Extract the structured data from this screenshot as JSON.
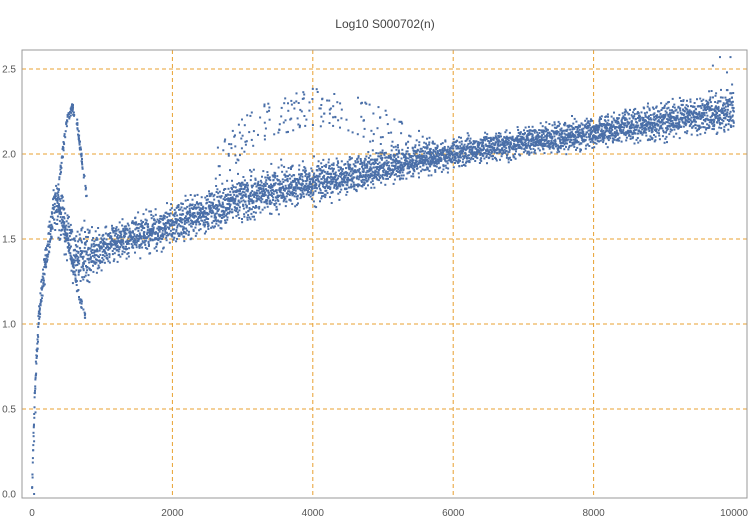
{
  "chart_data": {
    "type": "scatter",
    "title": "Log10 S000702(n)",
    "xlabel": "",
    "ylabel": "",
    "xlim": [
      0,
      10000
    ],
    "ylim": [
      0,
      2.6
    ],
    "x_ticks": [
      0,
      2000,
      4000,
      6000,
      8000,
      10000
    ],
    "y_ticks": [
      0.0,
      0.5,
      1.0,
      1.5,
      2.0,
      2.5
    ],
    "x_tick_labels": [
      "0",
      "2000",
      "4000",
      "6000",
      "8000",
      "10000"
    ],
    "y_tick_labels": [
      "0.0",
      "0.5",
      "1.0",
      "1.5",
      "2.0",
      "2.5"
    ],
    "grid": true,
    "grid_style": "dashed",
    "legend": "none",
    "colors": {
      "points": "#4a6fa8",
      "grid": "#e8a030",
      "frame": "#999999",
      "title": "#444444"
    },
    "series": [
      {
        "trend": [
          [
            0,
            0.0
          ],
          [
            40,
            0.6
          ],
          [
            100,
            1.05
          ],
          [
            200,
            1.4
          ],
          [
            300,
            1.65
          ],
          [
            360,
            1.7
          ],
          [
            450,
            1.6
          ],
          [
            550,
            1.45
          ],
          [
            650,
            1.38
          ],
          [
            800,
            1.42
          ],
          [
            1000,
            1.45
          ],
          [
            1500,
            1.52
          ],
          [
            2000,
            1.58
          ],
          [
            2500,
            1.66
          ],
          [
            3000,
            1.74
          ],
          [
            3500,
            1.8
          ],
          [
            4000,
            1.83
          ],
          [
            4500,
            1.87
          ],
          [
            5000,
            1.92
          ],
          [
            5500,
            1.97
          ],
          [
            6000,
            2.0
          ],
          [
            6500,
            2.04
          ],
          [
            7000,
            2.07
          ],
          [
            7500,
            2.1
          ],
          [
            8000,
            2.13
          ],
          [
            8500,
            2.16
          ],
          [
            9000,
            2.19
          ],
          [
            9500,
            2.22
          ],
          [
            10000,
            2.27
          ]
        ],
        "spread": [
          [
            0,
            0.05
          ],
          [
            300,
            0.12
          ],
          [
            700,
            0.2
          ],
          [
            1000,
            0.12
          ],
          [
            2000,
            0.12
          ],
          [
            3000,
            0.14
          ],
          [
            4000,
            0.12
          ],
          [
            6000,
            0.08
          ],
          [
            8000,
            0.09
          ],
          [
            10000,
            0.12
          ]
        ],
        "upper_arc": [
          [
            350,
            1.7
          ],
          [
            420,
            1.95
          ],
          [
            500,
            2.2
          ],
          [
            570,
            2.27
          ],
          [
            630,
            2.22
          ],
          [
            700,
            2.0
          ],
          [
            780,
            1.75
          ]
        ],
        "lower_arc": [
          [
            380,
            1.68
          ],
          [
            480,
            1.55
          ],
          [
            580,
            1.35
          ],
          [
            680,
            1.15
          ],
          [
            760,
            1.05
          ]
        ],
        "high_arcs": [
          [
            2600,
            2.0
          ],
          [
            3000,
            2.2
          ],
          [
            3400,
            2.32
          ],
          [
            3800,
            2.36
          ],
          [
            4200,
            2.38
          ],
          [
            4600,
            2.33
          ],
          [
            5000,
            2.25
          ],
          [
            5400,
            2.15
          ],
          [
            5800,
            2.05
          ]
        ],
        "outliers": [
          [
            9800,
            2.57
          ],
          [
            9950,
            2.57
          ],
          [
            9700,
            2.52
          ],
          [
            9900,
            2.48
          ],
          [
            30,
            0.0
          ],
          [
            30,
            0.31
          ],
          [
            50,
            0.48
          ]
        ]
      }
    ]
  }
}
